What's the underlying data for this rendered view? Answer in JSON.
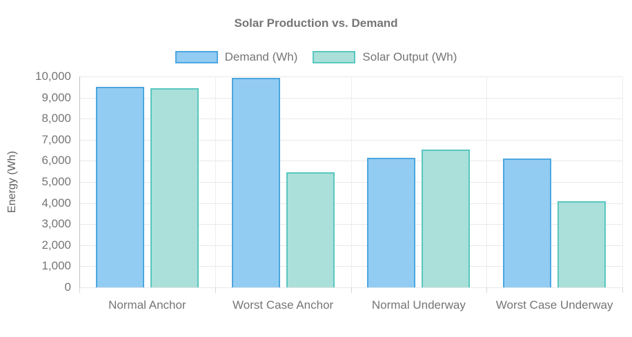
{
  "title": "Solar Production vs. Demand",
  "colors": {
    "title_text": "#757575",
    "axis_text": "#757575",
    "ylabel_text": "#616161",
    "gridline": "#e8e8e8",
    "axis_line": "#c2c2c2",
    "demand_fill": "#93ccf2",
    "demand_border": "#4ca6e0",
    "solar_fill": "#abe0da",
    "solar_border": "#57c7bf"
  },
  "chart_data": {
    "type": "bar",
    "title": "Solar Production vs. Demand",
    "categories": [
      "Normal Anchor",
      "Worst Case Anchor",
      "Normal Underway",
      "Worst Case Underway"
    ],
    "series": [
      {
        "name": "Demand (Wh)",
        "fill": "#93ccf2",
        "border": "#4ca6e0",
        "values": [
          9500,
          9950,
          6150,
          6100
        ]
      },
      {
        "name": "Solar Output (Wh)",
        "fill": "#abe0da",
        "border": "#57c7bf",
        "values": [
          9450,
          5450,
          6550,
          4100
        ]
      }
    ],
    "xlabel": "",
    "ylabel": "Energy (Wh)",
    "ylim": [
      0,
      10000
    ],
    "ytick_step": 1000,
    "ytick_labels": [
      "0",
      "1,000",
      "2,000",
      "3,000",
      "4,000",
      "5,000",
      "6,000",
      "7,000",
      "8,000",
      "9,000",
      "10,000"
    ],
    "grid": true,
    "legend_position": "top"
  }
}
